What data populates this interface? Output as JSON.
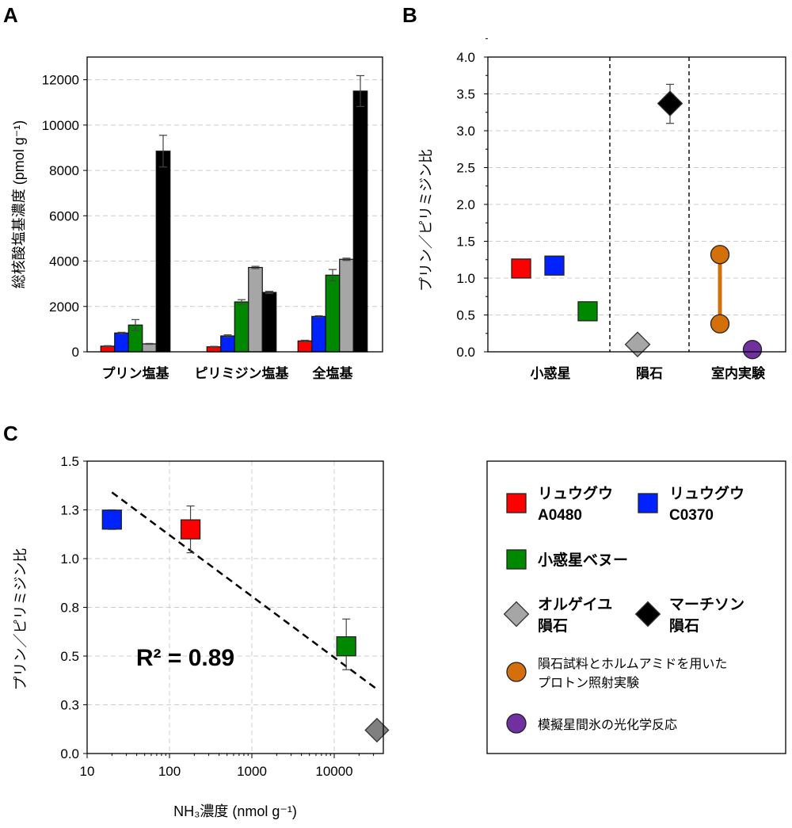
{
  "panels": {
    "a": "A",
    "b": "B",
    "c": "C"
  },
  "colors": {
    "red": "#ff0000",
    "blue": "#0022ff",
    "green": "#008800",
    "gray": "#a6a6a6",
    "black": "#000000",
    "orange": "#d4700a",
    "purple": "#7030a0"
  },
  "chart_data": [
    {
      "type": "bar",
      "panel": "A",
      "ylabel": "総核酸塩基濃度 (pmol g⁻¹)",
      "xlabel": "",
      "ylim": [
        0,
        13000
      ],
      "yticks": [
        0,
        2000,
        4000,
        6000,
        8000,
        10000,
        12000
      ],
      "grid": "horizontal dashed",
      "categories": [
        "プリン塩基",
        "ピリミジン塩基",
        "全塩基"
      ],
      "series": [
        {
          "color": "red",
          "values": [
            250,
            220,
            480
          ],
          "errors": [
            20,
            20,
            30
          ]
        },
        {
          "color": "blue",
          "values": [
            830,
            700,
            1560
          ],
          "errors": [
            30,
            50,
            30
          ]
        },
        {
          "color": "green",
          "values": [
            1180,
            2200,
            3380
          ],
          "errors": [
            240,
            100,
            250
          ]
        },
        {
          "color": "gray",
          "values": [
            350,
            3720,
            4080
          ],
          "errors": [
            20,
            50,
            50
          ]
        },
        {
          "color": "black",
          "values": [
            8850,
            2620,
            11500
          ],
          "errors": [
            700,
            50,
            680
          ]
        }
      ]
    },
    {
      "type": "scatter",
      "panel": "B",
      "ylabel": "プリン／ピリミジン比",
      "ylim": [
        0,
        4
      ],
      "yticks": [
        "0.0",
        "0.5",
        "1.0",
        "1.5",
        "2.0",
        "2.5",
        "3.0",
        "3.5",
        "4.0"
      ],
      "grid": "horizontal dashed",
      "groups": [
        "小惑星",
        "隕石",
        "室内実験"
      ],
      "points": [
        {
          "group": "小惑星",
          "series": "リュウグウ A0480",
          "marker": "square",
          "color": "red",
          "y": 1.13
        },
        {
          "group": "小惑星",
          "series": "リュウグウ C0370",
          "marker": "square",
          "color": "blue",
          "y": 1.17
        },
        {
          "group": "小惑星",
          "series": "小惑星ベヌー",
          "marker": "square",
          "color": "green",
          "y": 0.55
        },
        {
          "group": "隕石",
          "series": "オルゲイユ 隕石",
          "marker": "diamond",
          "color": "gray",
          "y": 0.1
        },
        {
          "group": "隕石",
          "series": "マーチソン 隕石",
          "marker": "diamond",
          "color": "black",
          "y": 3.37,
          "err": [
            3.1,
            3.63
          ]
        },
        {
          "group": "室内実験",
          "series": "隕石試料とホルムアミドを用いたプロトン照射実験",
          "marker": "circle",
          "color": "orange",
          "y": 1.32,
          "y2": 0.38
        },
        {
          "group": "室内実験",
          "series": "模擬星間氷の光化学反応",
          "marker": "circle",
          "color": "purple",
          "y": 0.03
        }
      ]
    },
    {
      "type": "scatter",
      "panel": "C",
      "xscale": "log",
      "xlabel": "NH₃濃度 (nmol g⁻¹)",
      "ylabel": "プリン／ピリミジン比",
      "xlim": [
        10,
        40000
      ],
      "ylim": [
        0,
        1.5
      ],
      "xticks": [
        "10",
        "100",
        "1000",
        "10000"
      ],
      "yticks": [
        "0.0",
        "0.3",
        "0.5",
        "0.8",
        "1.0",
        "1.3",
        "1.5"
      ],
      "grid": "both dashed",
      "annotation": "R² = 0.89",
      "trendline": {
        "x": [
          20,
          33000
        ],
        "y": [
          1.34,
          0.33
        ],
        "style": "dashed"
      },
      "points": [
        {
          "series": "リュウグウ C0370",
          "marker": "square",
          "color": "blue",
          "x": 20,
          "y": 1.2,
          "err": [
            1.15,
            1.25
          ]
        },
        {
          "series": "リュウグウ A0480",
          "marker": "square",
          "color": "red",
          "x": 180,
          "y": 1.15,
          "err": [
            1.03,
            1.27
          ]
        },
        {
          "series": "小惑星ベヌー",
          "marker": "square",
          "color": "green",
          "x": 14000,
          "y": 0.55,
          "err": [
            0.43,
            0.69
          ]
        },
        {
          "series": "オルゲイユ 隕石",
          "marker": "diamond",
          "color": "gray2",
          "x": 33000,
          "y": 0.12
        }
      ]
    }
  ],
  "legend": [
    {
      "marker": "square",
      "color": "red",
      "lines": [
        "リュウグウ",
        "A0480"
      ]
    },
    {
      "marker": "square",
      "color": "blue",
      "lines": [
        "リュウグウ",
        "C0370"
      ]
    },
    {
      "marker": "square",
      "color": "green",
      "lines": [
        "小惑星ベヌー"
      ]
    },
    {
      "marker": "diamond",
      "color": "gray",
      "lines": [
        "オルゲイユ",
        "隕石"
      ]
    },
    {
      "marker": "diamond",
      "color": "black",
      "lines": [
        "マーチソン",
        "隕石"
      ]
    },
    {
      "marker": "circle",
      "color": "orange",
      "lines": [
        "隕石試料とホルムアミドを用いた",
        "プロトン照射実験"
      ]
    },
    {
      "marker": "circle",
      "color": "purple",
      "lines": [
        "模擬星間氷の光化学反応"
      ]
    }
  ]
}
